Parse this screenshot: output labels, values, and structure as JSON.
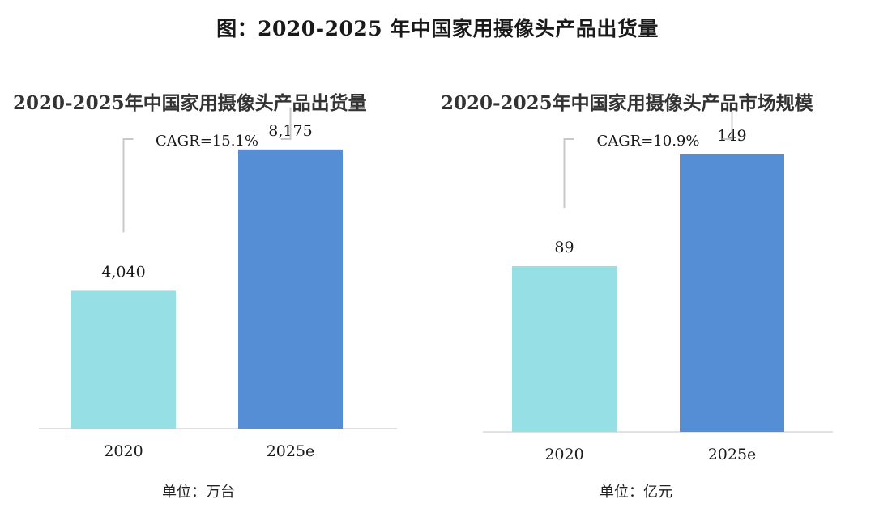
{
  "page": {
    "title": "图：2020-2025 年中国家用摄像头产品出货量"
  },
  "charts": [
    {
      "title": "2020-2025年中国家用摄像头产品出货量",
      "cagr_label": "CAGR=15.1%",
      "unit_label": "单位：",
      "unit_value": "万台"
    },
    {
      "title": "2020-2025年中国家用摄像头产品市场规模",
      "cagr_label": "CAGR=10.9%",
      "unit_label": "单位：",
      "unit_value": "亿元"
    }
  ],
  "chart_data": [
    {
      "type": "bar",
      "title": "2020-2025年中国家用摄像头产品出货量",
      "categories": [
        "2020",
        "2025e"
      ],
      "values": [
        4040,
        8175
      ],
      "value_labels": [
        "4,040",
        "8,175"
      ],
      "colors": [
        "#96E0E5",
        "#558ED5"
      ],
      "annotation": "CAGR=15.1%",
      "unit": "万台",
      "ylim": [
        0,
        9000
      ],
      "xlabel": "",
      "ylabel": ""
    },
    {
      "type": "bar",
      "title": "2020-2025年中国家用摄像头产品市场规模",
      "categories": [
        "2020",
        "2025e"
      ],
      "values": [
        89,
        149
      ],
      "value_labels": [
        "89",
        "149"
      ],
      "colors": [
        "#96E0E5",
        "#558ED5"
      ],
      "annotation": "CAGR=10.9%",
      "unit": "亿元",
      "ylim": [
        0,
        165
      ],
      "xlabel": "",
      "ylabel": ""
    }
  ]
}
